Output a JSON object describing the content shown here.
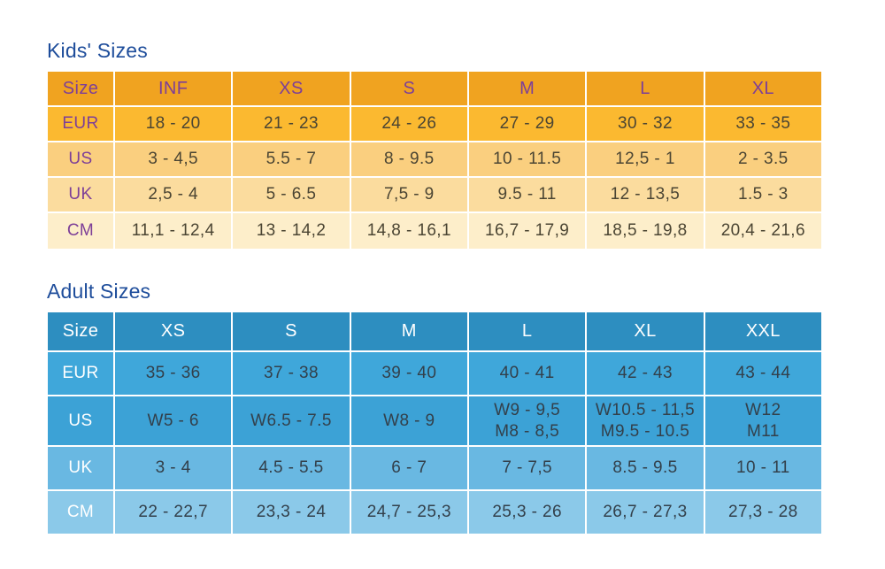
{
  "page": {
    "background_color": "#ffffff",
    "title_color": "#1E4D9B"
  },
  "tables": [
    {
      "id": "kids",
      "title": "Kids' Sizes",
      "columns": [
        "Size",
        "INF",
        "XS",
        "S",
        "M",
        "L",
        "XL"
      ],
      "theme": {
        "header_bg": "#F0A320",
        "header_text": "#7D3F98",
        "label_text": "#7D3F98",
        "data_text": "#4B4533"
      },
      "rows": [
        {
          "label": "EUR",
          "bg": "#FBB930",
          "cells": [
            "18 - 20",
            "21 - 23",
            "24 - 26",
            "27 - 29",
            "30 - 32",
            "33 - 35"
          ]
        },
        {
          "label": "US",
          "bg": "#FACF7F",
          "cells": [
            "3 - 4,5",
            "5.5 - 7",
            "8 - 9.5",
            "10 - 11.5",
            "12,5 - 1",
            "2 - 3.5"
          ]
        },
        {
          "label": "UK",
          "bg": "#FBDC9E",
          "cells": [
            "2,5 - 4",
            "5 - 6.5",
            "7,5 - 9",
            "9.5 - 11",
            "12 - 13,5",
            "1.5 - 3"
          ]
        },
        {
          "label": "CM",
          "bg": "#FDEECA",
          "cells": [
            "11,1 - 12,4",
            "13 - 14,2",
            "14,8 - 16,1",
            "16,7 - 17,9",
            "18,5 - 19,8",
            "20,4 - 21,6"
          ]
        }
      ]
    },
    {
      "id": "adult",
      "title": "Adult Sizes",
      "columns": [
        "Size",
        "XS",
        "S",
        "M",
        "L",
        "XL",
        "XXL"
      ],
      "theme": {
        "header_bg": "#2D8EC0",
        "header_text": "#FFFFFF",
        "label_text": "#FFFFFF",
        "data_text": "#33404B"
      },
      "rows": [
        {
          "label": "EUR",
          "bg": "#3FA7DA",
          "cells": [
            "35 - 36",
            "37 - 38",
            "39 - 40",
            "40 - 41",
            "42 - 43",
            "43 - 44"
          ]
        },
        {
          "label": "US",
          "bg": "#3CA2D6",
          "cells": [
            "W5 - 6",
            "W6.5 - 7.5",
            "W8 - 9",
            "W9 - 9,5\nM8 - 8,5",
            "W10.5 - 11,5\nM9.5 - 10.5",
            "W12\nM11"
          ]
        },
        {
          "label": "UK",
          "bg": "#69B8E2",
          "cells": [
            "3 - 4",
            "4.5 - 5.5",
            "6 - 7",
            "7 - 7,5",
            "8.5 - 9.5",
            "10 - 11"
          ]
        },
        {
          "label": "CM",
          "bg": "#8BC9E9",
          "cells": [
            "22 - 22,7",
            "23,3 - 24",
            "24,7 - 25,3",
            "25,3 - 26",
            "26,7 - 27,3",
            "27,3 - 28"
          ]
        }
      ]
    }
  ]
}
